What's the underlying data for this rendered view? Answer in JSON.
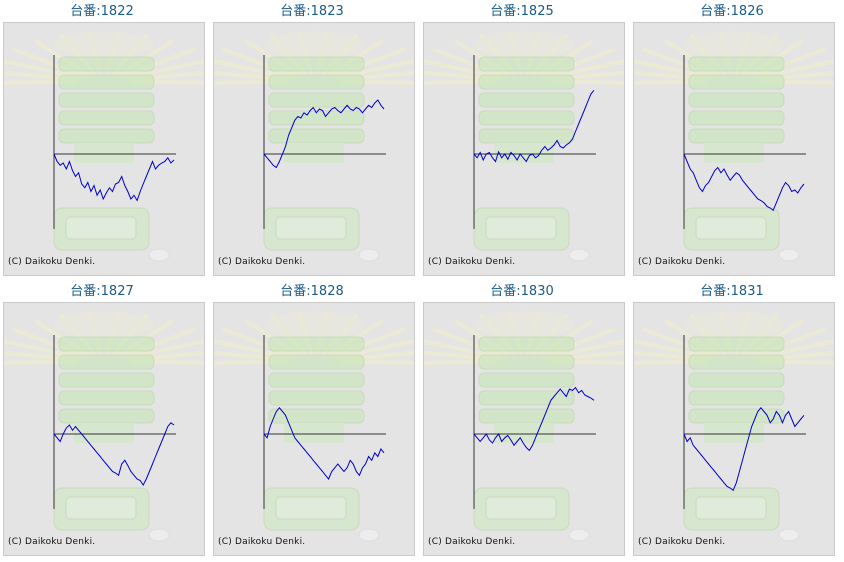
{
  "copyright": "(C) Daikoku Denki.",
  "colors": {
    "line": "#0000cc",
    "axis": "#333333",
    "panel_bg": "#e4e4e4",
    "title": "#1a5a8a"
  },
  "chart_data": [
    {
      "type": "line",
      "title": "台番:1822",
      "ylim": [
        -1,
        1
      ],
      "values": [
        0,
        -0.1,
        -0.15,
        -0.12,
        -0.2,
        -0.1,
        -0.22,
        -0.3,
        -0.25,
        -0.4,
        -0.45,
        -0.38,
        -0.5,
        -0.42,
        -0.55,
        -0.48,
        -0.6,
        -0.52,
        -0.45,
        -0.5,
        -0.4,
        -0.38,
        -0.3,
        -0.42,
        -0.5,
        -0.6,
        -0.55,
        -0.62,
        -0.5,
        -0.4,
        -0.3,
        -0.2,
        -0.1,
        -0.2,
        -0.15,
        -0.12,
        -0.1,
        -0.05,
        -0.12,
        -0.08
      ]
    },
    {
      "type": "line",
      "title": "台番:1823",
      "ylim": [
        -1,
        1
      ],
      "values": [
        0,
        -0.05,
        -0.1,
        -0.15,
        -0.18,
        -0.1,
        0.0,
        0.1,
        0.25,
        0.35,
        0.45,
        0.5,
        0.48,
        0.55,
        0.52,
        0.58,
        0.62,
        0.55,
        0.6,
        0.58,
        0.5,
        0.55,
        0.6,
        0.62,
        0.58,
        0.55,
        0.6,
        0.65,
        0.6,
        0.58,
        0.62,
        0.6,
        0.55,
        0.6,
        0.65,
        0.62,
        0.68,
        0.72,
        0.65,
        0.6
      ]
    },
    {
      "type": "line",
      "title": "台番:1825",
      "ylim": [
        -1,
        1
      ],
      "values": [
        0,
        -0.05,
        0.02,
        -0.08,
        0.0,
        0.02,
        -0.05,
        -0.1,
        0.03,
        -0.05,
        0.0,
        -0.07,
        0.02,
        -0.02,
        -0.08,
        0.0,
        -0.05,
        -0.1,
        -0.02,
        0.0,
        -0.05,
        -0.02,
        0.05,
        0.1,
        0.05,
        0.08,
        0.12,
        0.18,
        0.1,
        0.08,
        0.12,
        0.15,
        0.2,
        0.3,
        0.4,
        0.5,
        0.6,
        0.7,
        0.8,
        0.85
      ]
    },
    {
      "type": "line",
      "title": "台番:1826",
      "ylim": [
        -1,
        1
      ],
      "values": [
        0,
        -0.1,
        -0.2,
        -0.25,
        -0.35,
        -0.45,
        -0.5,
        -0.42,
        -0.38,
        -0.3,
        -0.22,
        -0.18,
        -0.25,
        -0.2,
        -0.28,
        -0.35,
        -0.3,
        -0.25,
        -0.28,
        -0.35,
        -0.4,
        -0.45,
        -0.5,
        -0.55,
        -0.6,
        -0.62,
        -0.65,
        -0.7,
        -0.72,
        -0.75,
        -0.65,
        -0.55,
        -0.45,
        -0.38,
        -0.42,
        -0.5,
        -0.48,
        -0.52,
        -0.45,
        -0.4
      ]
    },
    {
      "type": "line",
      "title": "台番:1827",
      "ylim": [
        -1,
        1
      ],
      "values": [
        0,
        -0.05,
        -0.1,
        0.0,
        0.08,
        0.12,
        0.05,
        0.1,
        0.05,
        0.0,
        -0.05,
        -0.1,
        -0.15,
        -0.2,
        -0.25,
        -0.3,
        -0.35,
        -0.4,
        -0.45,
        -0.5,
        -0.52,
        -0.55,
        -0.4,
        -0.35,
        -0.42,
        -0.5,
        -0.55,
        -0.6,
        -0.62,
        -0.68,
        -0.6,
        -0.5,
        -0.4,
        -0.3,
        -0.2,
        -0.1,
        0.0,
        0.1,
        0.15,
        0.12
      ]
    },
    {
      "type": "line",
      "title": "台番:1828",
      "ylim": [
        -1,
        1
      ],
      "values": [
        0,
        -0.05,
        0.1,
        0.2,
        0.3,
        0.35,
        0.3,
        0.25,
        0.15,
        0.05,
        -0.05,
        -0.1,
        -0.15,
        -0.2,
        -0.25,
        -0.3,
        -0.35,
        -0.4,
        -0.45,
        -0.5,
        -0.55,
        -0.6,
        -0.5,
        -0.45,
        -0.4,
        -0.45,
        -0.5,
        -0.45,
        -0.35,
        -0.4,
        -0.5,
        -0.55,
        -0.45,
        -0.4,
        -0.3,
        -0.35,
        -0.25,
        -0.3,
        -0.2,
        -0.25
      ]
    },
    {
      "type": "line",
      "title": "台番:1830",
      "ylim": [
        -1,
        1
      ],
      "values": [
        0,
        -0.05,
        -0.1,
        -0.05,
        0.0,
        -0.08,
        -0.12,
        -0.05,
        0.0,
        -0.1,
        -0.05,
        -0.02,
        -0.08,
        -0.15,
        -0.1,
        -0.05,
        -0.12,
        -0.18,
        -0.22,
        -0.15,
        -0.05,
        0.05,
        0.15,
        0.25,
        0.35,
        0.45,
        0.5,
        0.55,
        0.6,
        0.55,
        0.5,
        0.6,
        0.58,
        0.62,
        0.55,
        0.58,
        0.52,
        0.5,
        0.48,
        0.45
      ]
    },
    {
      "type": "line",
      "title": "台番:1831",
      "ylim": [
        -1,
        1
      ],
      "values": [
        0,
        -0.1,
        -0.05,
        -0.15,
        -0.2,
        -0.25,
        -0.3,
        -0.35,
        -0.4,
        -0.45,
        -0.5,
        -0.55,
        -0.6,
        -0.65,
        -0.7,
        -0.72,
        -0.75,
        -0.65,
        -0.5,
        -0.35,
        -0.2,
        -0.05,
        0.1,
        0.2,
        0.3,
        0.35,
        0.3,
        0.25,
        0.15,
        0.2,
        0.3,
        0.25,
        0.15,
        0.25,
        0.3,
        0.2,
        0.1,
        0.15,
        0.2,
        0.25
      ]
    }
  ]
}
